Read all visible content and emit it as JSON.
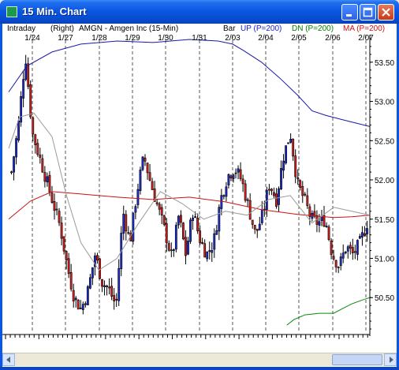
{
  "window": {
    "title": "15 Min. Chart"
  },
  "header": {
    "mode": "Intraday",
    "axis_side": "(Right)",
    "symbol_desc": "AMGN - Amgen Inc  (15-Min)",
    "bar_label": "Bar",
    "up_label": "UP (P=200)",
    "dn_label": "DN (P=200)",
    "ma_label": "MA (P=200)"
  },
  "colors": {
    "up_bar": "#1f2fd8",
    "down_bar": "#d81e1e",
    "upper_band": "#1a1aa8",
    "lower_band": "#0a8a0a",
    "moving_average": "#cc1010",
    "short_average": "#9a9a9a",
    "up_label": "#1a1ad0",
    "dn_label": "#008000",
    "ma_label": "#d01010"
  },
  "icons": {
    "app": "chart-app-icon",
    "minimize": "minimize-icon",
    "maximize": "maximize-icon",
    "close": "close-icon"
  },
  "chart_data": {
    "type": "candlestick",
    "x_labels": [
      "1/24",
      "1/27",
      "1/28",
      "1/29",
      "1/30",
      "1/31",
      "2/03",
      "2/04",
      "2/05",
      "2/06",
      "2/07"
    ],
    "y_ticks": [
      53.5,
      53.0,
      52.5,
      52.0,
      51.5,
      51.0,
      50.5
    ],
    "y_tick_labels": [
      "53.50",
      "53.00",
      "52.50",
      "52.00",
      "51.50",
      "51.00",
      "50.50"
    ],
    "ylim": [
      50.05,
      53.85
    ],
    "grid": "vertical-dashed-at-day-boundaries",
    "bars_per_day": 14,
    "price_path": [
      52.1,
      52.7,
      53.6,
      52.6,
      52.3,
      52.0,
      51.7,
      51.4,
      50.9,
      50.5,
      50.35,
      50.6,
      51.05,
      50.7,
      50.6,
      50.4,
      51.6,
      51.2,
      51.85,
      52.3,
      51.95,
      51.65,
      51.35,
      51.0,
      51.55,
      51.05,
      51.6,
      51.25,
      51.05,
      51.2,
      51.75,
      52.05,
      52.15,
      52.0,
      51.65,
      51.3,
      51.55,
      51.95,
      51.75,
      52.3,
      52.6,
      51.95,
      51.75,
      51.5,
      51.45,
      51.5,
      51.05,
      50.9,
      51.15,
      51.05,
      51.2,
      51.45
    ],
    "series": [
      {
        "name": "UP (P=200)",
        "x": [
          0,
          0.05,
          0.12,
          0.2,
          0.3,
          0.4,
          0.5,
          0.58,
          0.62,
          0.65,
          0.7,
          0.75,
          0.8,
          0.84,
          0.88,
          0.93,
          1
        ],
        "values": [
          53.12,
          53.45,
          53.63,
          53.73,
          53.77,
          53.75,
          53.79,
          53.77,
          53.73,
          53.65,
          53.5,
          53.3,
          53.08,
          52.88,
          52.82,
          52.76,
          52.68
        ]
      },
      {
        "name": "DN (P=200)",
        "x": [
          0.77,
          0.79,
          0.82,
          0.86,
          0.9,
          0.92,
          0.95,
          0.98,
          1
        ],
        "values": [
          50.15,
          50.22,
          50.28,
          50.3,
          50.3,
          50.35,
          50.42,
          50.47,
          50.5
        ]
      },
      {
        "name": "MA (P=200)",
        "x": [
          0,
          0.06,
          0.12,
          0.2,
          0.3,
          0.4,
          0.5,
          0.6,
          0.7,
          0.8,
          0.85,
          0.9,
          0.95,
          1
        ],
        "values": [
          51.5,
          51.73,
          51.85,
          51.82,
          51.78,
          51.75,
          51.78,
          51.72,
          51.62,
          51.56,
          51.54,
          51.52,
          51.53,
          51.55
        ]
      },
      {
        "x": [
          0,
          0.03,
          0.07,
          0.12,
          0.16,
          0.2,
          0.25,
          0.3,
          0.36,
          0.42,
          0.48,
          0.54,
          0.6,
          0.66,
          0.72,
          0.78,
          0.84,
          0.9,
          0.95,
          1
        ],
        "values": [
          52.4,
          52.8,
          52.85,
          52.55,
          51.8,
          51.2,
          50.85,
          51.0,
          51.45,
          51.85,
          51.7,
          51.5,
          51.6,
          51.55,
          51.75,
          51.8,
          51.45,
          51.65,
          51.6,
          51.55
        ]
      }
    ]
  }
}
